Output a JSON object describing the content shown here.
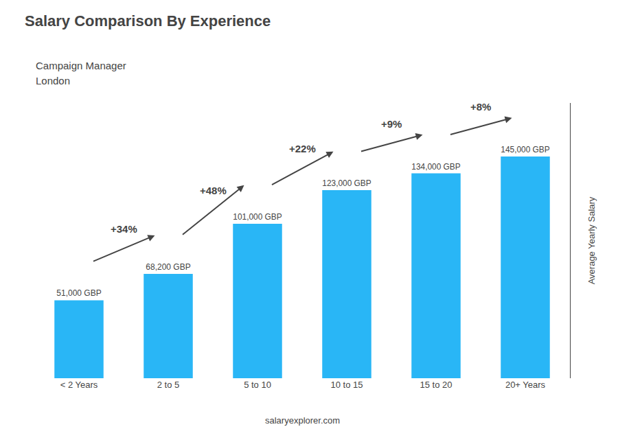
{
  "chart_data": {
    "type": "bar",
    "title": "Salary Comparison By Experience",
    "subtitle": [
      "Campaign Manager",
      "London"
    ],
    "ylabel": "Average Yearly Salary",
    "categories": [
      "< 2 Years",
      "2 to 5",
      "5 to 10",
      "10 to 15",
      "15 to 20",
      "20+ Years"
    ],
    "values": [
      51000,
      68200,
      101000,
      123000,
      134000,
      145000
    ],
    "value_labels": [
      "51,000 GBP",
      "68,200 GBP",
      "101,000 GBP",
      "123,000 GBP",
      "134,000 GBP",
      "145,000 GBP"
    ],
    "data_labels": true,
    "annotations": [
      "+34%",
      "+48%",
      "+22%",
      "+9%",
      "+8%"
    ],
    "footer": "salaryexplorer.com",
    "color": "#29b6f6",
    "ylim": [
      0,
      180000
    ],
    "tick_labels": "x",
    "grid": false
  }
}
